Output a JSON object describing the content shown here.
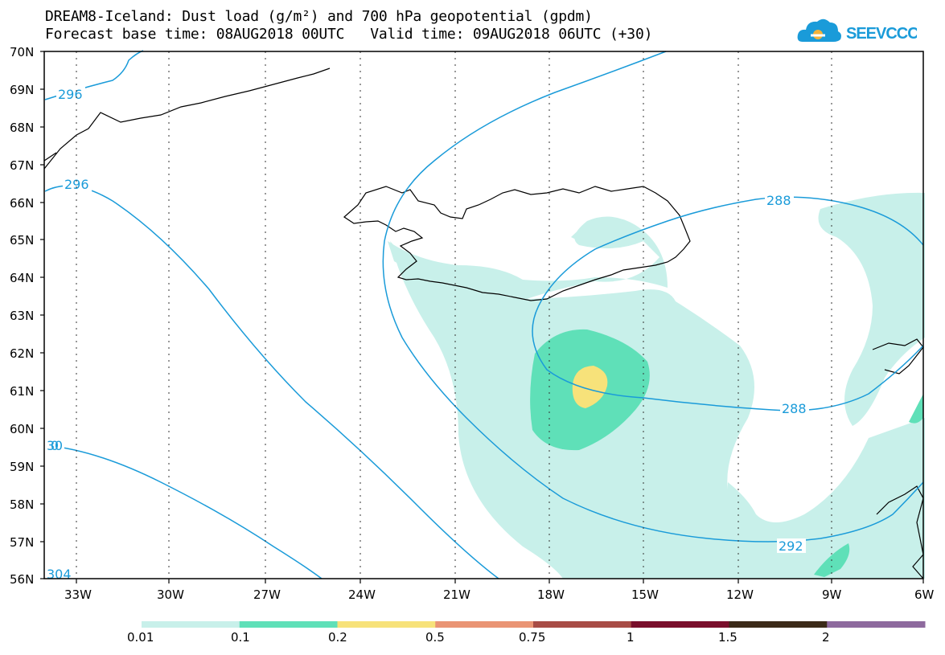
{
  "title_line1": "DREAM8-Iceland: Dust load (g/m²) and 700 hPa geopotential (gpdm)",
  "title_line2": "Forecast base time: 08AUG2018 00UTC   Valid time: 09AUG2018 06UTC (+30)",
  "logo_text": "SEEVCCC",
  "lat_labels": [
    "70N",
    "69N",
    "68N",
    "67N",
    "66N",
    "65N",
    "64N",
    "63N",
    "62N",
    "61N",
    "60N",
    "59N",
    "58N",
    "57N",
    "56N"
  ],
  "lon_labels": [
    "33W",
    "30W",
    "27W",
    "24W",
    "21W",
    "18W",
    "15W",
    "12W",
    "9W",
    "6W"
  ],
  "contour_labels": [
    "296",
    "296",
    "288",
    "288",
    "292",
    "300",
    "304"
  ],
  "colorbar": {
    "labels": [
      "0.01",
      "0.1",
      "0.2",
      "0.5",
      "0.75",
      "1",
      "1.5",
      "2"
    ],
    "colors": [
      "#c8f0ea",
      "#5fe0b8",
      "#f7e27a",
      "#ea9474",
      "#a84c46",
      "#7a0f2c",
      "#3b2a18",
      "#8e6a9e"
    ]
  },
  "colors": {
    "contour": "#1a9bd9",
    "dust_low": "#c8f0ea",
    "dust_mid": "#5fe0b8",
    "dust_high": "#f7e27a",
    "logo": "#1a9bd9"
  }
}
